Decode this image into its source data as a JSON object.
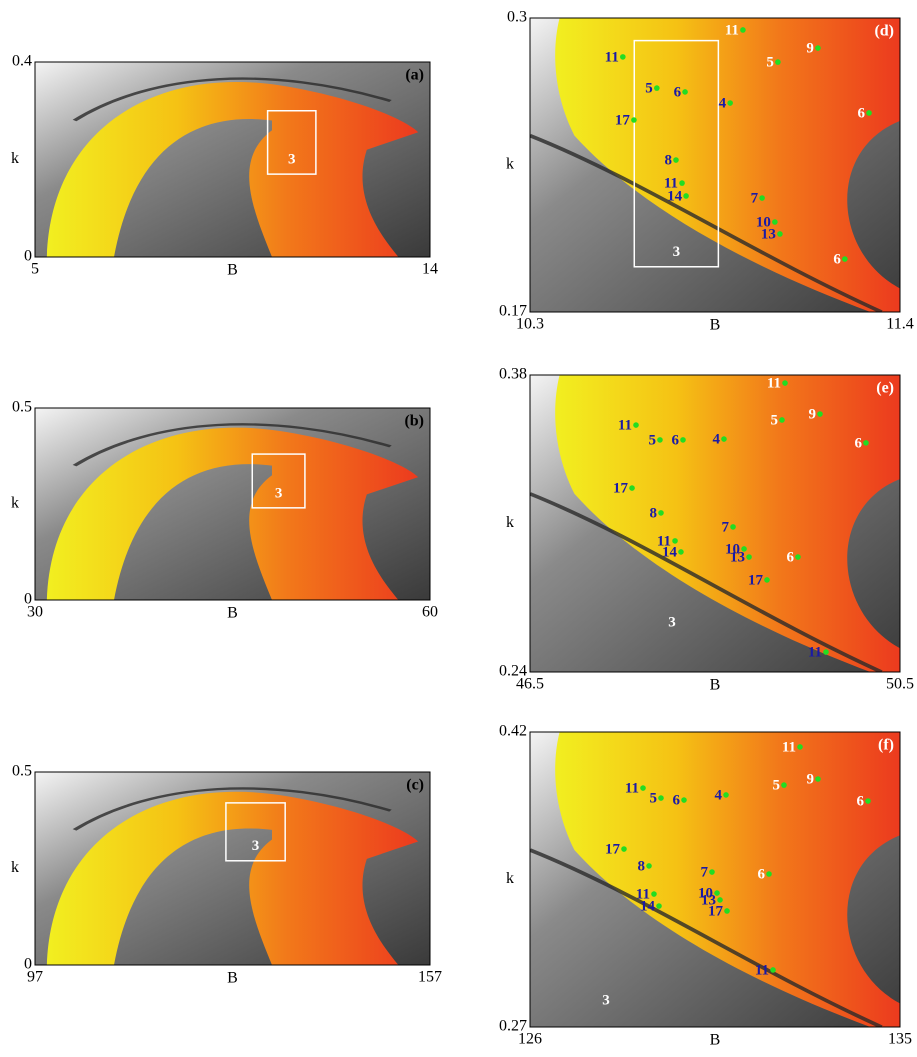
{
  "chart_data": [
    {
      "type": "heatmap",
      "panel_label": "(a)",
      "xlabel": "B",
      "ylabel": "k",
      "xlim": [
        5,
        14
      ],
      "ylim": [
        0,
        0.4
      ],
      "xticks": [
        5,
        14
      ],
      "yticks": [
        0,
        0.4
      ],
      "zoom_box": {
        "x": [
          10.3,
          11.4
        ],
        "y": [
          0.17,
          0.3
        ],
        "label": "3"
      },
      "marker_color": "#22dd22",
      "annotations": []
    },
    {
      "type": "heatmap",
      "panel_label": "(b)",
      "xlabel": "B",
      "ylabel": "k",
      "xlim": [
        30,
        60
      ],
      "ylim": [
        0,
        0.5
      ],
      "xticks": [
        30,
        60
      ],
      "yticks": [
        0,
        0.5
      ],
      "zoom_box": {
        "x": [
          46.5,
          50.5
        ],
        "y": [
          0.24,
          0.38
        ],
        "label": "3"
      },
      "marker_color": "#22dd22",
      "annotations": []
    },
    {
      "type": "heatmap",
      "panel_label": "(c)",
      "xlabel": "B",
      "ylabel": "k",
      "xlim": [
        97,
        157
      ],
      "ylim": [
        0,
        0.5
      ],
      "xticks": [
        97,
        157
      ],
      "yticks": [
        0,
        0.5
      ],
      "zoom_box": {
        "x": [
          126,
          135
        ],
        "y": [
          0.27,
          0.42
        ],
        "label": "3"
      },
      "marker_color": "#22dd22",
      "annotations": []
    },
    {
      "type": "heatmap",
      "panel_label": "(d)",
      "xlabel": "B",
      "ylabel": "k",
      "xlim": [
        10.3,
        11.4
      ],
      "ylim": [
        0.17,
        0.3
      ],
      "xticks": [
        10.3,
        11.4
      ],
      "yticks": [
        0.17,
        0.3
      ],
      "zoom_box": {
        "x": [
          10.61,
          10.86
        ],
        "y": [
          0.19,
          0.29
        ],
        "label": "3"
      },
      "marker_color": "#22dd22",
      "annotations": [
        {
          "text": "11",
          "x": 10.933,
          "y": 0.2947,
          "color": "#ffffff",
          "marker": true
        },
        {
          "text": "11",
          "x": 10.576,
          "y": 0.2828,
          "color": "#1a1aa6",
          "marker": true
        },
        {
          "text": "5",
          "x": 11.037,
          "y": 0.2805,
          "color": "#ffffff",
          "marker": true
        },
        {
          "text": "9",
          "x": 11.156,
          "y": 0.2867,
          "color": "#ffffff",
          "marker": true
        },
        {
          "text": "5",
          "x": 10.677,
          "y": 0.269,
          "color": "#1a1aa6",
          "marker": true
        },
        {
          "text": "6",
          "x": 10.761,
          "y": 0.2673,
          "color": "#1a1aa6",
          "marker": true
        },
        {
          "text": "4",
          "x": 10.895,
          "y": 0.2624,
          "color": "#1a1aa6",
          "marker": true
        },
        {
          "text": "17",
          "x": 10.609,
          "y": 0.2549,
          "color": "#1a1aa6",
          "marker": true
        },
        {
          "text": "6",
          "x": 11.308,
          "y": 0.258,
          "color": "#ffffff",
          "marker": true
        },
        {
          "text": "8",
          "x": 10.734,
          "y": 0.2372,
          "color": "#1a1aa6",
          "marker": true
        },
        {
          "text": "11",
          "x": 10.752,
          "y": 0.227,
          "color": "#1a1aa6",
          "marker": true
        },
        {
          "text": "14",
          "x": 10.764,
          "y": 0.2213,
          "color": "#1a1aa6",
          "marker": true
        },
        {
          "text": "7",
          "x": 10.99,
          "y": 0.2204,
          "color": "#1a1aa6",
          "marker": true
        },
        {
          "text": "10",
          "x": 11.028,
          "y": 0.2098,
          "color": "#1a1aa6",
          "marker": true
        },
        {
          "text": "13",
          "x": 11.043,
          "y": 0.2045,
          "color": "#1a1aa6",
          "marker": true
        },
        {
          "text": "6",
          "x": 11.236,
          "y": 0.1934,
          "color": "#ffffff",
          "marker": true
        }
      ]
    },
    {
      "type": "heatmap",
      "panel_label": "(e)",
      "xlabel": "B",
      "ylabel": "k",
      "xlim": [
        46.5,
        50.5
      ],
      "ylim": [
        0.24,
        0.38
      ],
      "xticks": [
        46.5,
        50.5
      ],
      "yticks": [
        0.24,
        0.38
      ],
      "marker_color": "#22dd22",
      "annotations": [
        {
          "text": "11",
          "x": 49.257,
          "y": 0.3762,
          "color": "#ffffff",
          "marker": true
        },
        {
          "text": "11",
          "x": 47.646,
          "y": 0.3564,
          "color": "#1a1aa6",
          "marker": true
        },
        {
          "text": "5",
          "x": 49.224,
          "y": 0.3588,
          "color": "#ffffff",
          "marker": true
        },
        {
          "text": "9",
          "x": 49.635,
          "y": 0.3616,
          "color": "#ffffff",
          "marker": true
        },
        {
          "text": "5",
          "x": 47.905,
          "y": 0.3494,
          "color": "#1a1aa6",
          "marker": true
        },
        {
          "text": "6",
          "x": 48.154,
          "y": 0.3494,
          "color": "#1a1aa6",
          "marker": true
        },
        {
          "text": "4",
          "x": 48.597,
          "y": 0.3498,
          "color": "#1a1aa6",
          "marker": true
        },
        {
          "text": "6",
          "x": 50.132,
          "y": 0.348,
          "color": "#ffffff",
          "marker": true
        },
        {
          "text": "17",
          "x": 47.603,
          "y": 0.3267,
          "color": "#1a1aa6",
          "marker": true
        },
        {
          "text": "8",
          "x": 47.916,
          "y": 0.315,
          "color": "#1a1aa6",
          "marker": true
        },
        {
          "text": "7",
          "x": 48.695,
          "y": 0.3084,
          "color": "#1a1aa6",
          "marker": true
        },
        {
          "text": "11",
          "x": 48.068,
          "y": 0.3018,
          "color": "#1a1aa6",
          "marker": true
        },
        {
          "text": "14",
          "x": 48.132,
          "y": 0.2966,
          "color": "#1a1aa6",
          "marker": true
        },
        {
          "text": "10",
          "x": 48.814,
          "y": 0.298,
          "color": "#1a1aa6",
          "marker": true
        },
        {
          "text": "13",
          "x": 48.868,
          "y": 0.2942,
          "color": "#1a1aa6",
          "marker": true
        },
        {
          "text": "6",
          "x": 49.397,
          "y": 0.2942,
          "color": "#ffffff",
          "marker": true
        },
        {
          "text": "17",
          "x": 49.062,
          "y": 0.2834,
          "color": "#1a1aa6",
          "marker": true
        },
        {
          "text": "11",
          "x": 49.7,
          "y": 0.2494,
          "color": "#1a1aa6",
          "marker": true
        },
        {
          "text": "3",
          "x": 48.035,
          "y": 0.2636,
          "color": "#ffffff",
          "marker": false
        }
      ]
    },
    {
      "type": "heatmap",
      "panel_label": "(f)",
      "xlabel": "B",
      "ylabel": "k",
      "xlim": [
        126,
        135
      ],
      "ylim": [
        0.27,
        0.42
      ],
      "xticks": [
        126,
        135
      ],
      "yticks": [
        0.27,
        0.42
      ],
      "marker_color": "#22dd22",
      "annotations": [
        {
          "text": "11",
          "x": 132.568,
          "y": 0.4124,
          "color": "#ffffff",
          "marker": true
        },
        {
          "text": "11",
          "x": 128.749,
          "y": 0.3915,
          "color": "#1a1aa6",
          "marker": true
        },
        {
          "text": "5",
          "x": 132.178,
          "y": 0.393,
          "color": "#ffffff",
          "marker": true
        },
        {
          "text": "9",
          "x": 133.005,
          "y": 0.3961,
          "color": "#ffffff",
          "marker": true
        },
        {
          "text": "5",
          "x": 129.186,
          "y": 0.3864,
          "color": "#1a1aa6",
          "marker": true
        },
        {
          "text": "6",
          "x": 129.746,
          "y": 0.3854,
          "color": "#1a1aa6",
          "marker": true
        },
        {
          "text": "4",
          "x": 130.768,
          "y": 0.388,
          "color": "#1a1aa6",
          "marker": true
        },
        {
          "text": "6",
          "x": 134.222,
          "y": 0.3849,
          "color": "#ffffff",
          "marker": true
        },
        {
          "text": "17",
          "x": 128.286,
          "y": 0.3605,
          "color": "#1a1aa6",
          "marker": true
        },
        {
          "text": "8",
          "x": 128.895,
          "y": 0.3519,
          "color": "#1a1aa6",
          "marker": true
        },
        {
          "text": "7",
          "x": 130.427,
          "y": 0.3488,
          "color": "#1a1aa6",
          "marker": true
        },
        {
          "text": "11",
          "x": 129.016,
          "y": 0.3376,
          "color": "#1a1aa6",
          "marker": true
        },
        {
          "text": "14",
          "x": 129.138,
          "y": 0.3315,
          "color": "#1a1aa6",
          "marker": true
        },
        {
          "text": "10",
          "x": 130.549,
          "y": 0.3381,
          "color": "#1a1aa6",
          "marker": true
        },
        {
          "text": "13",
          "x": 130.622,
          "y": 0.3346,
          "color": "#1a1aa6",
          "marker": true
        },
        {
          "text": "17",
          "x": 130.792,
          "y": 0.329,
          "color": "#1a1aa6",
          "marker": true
        },
        {
          "text": "6",
          "x": 131.814,
          "y": 0.3478,
          "color": "#ffffff",
          "marker": true
        },
        {
          "text": "11",
          "x": 131.911,
          "y": 0.299,
          "color": "#1a1aa6",
          "marker": true
        },
        {
          "text": "3",
          "x": 127.849,
          "y": 0.2837,
          "color": "#ffffff",
          "marker": false
        }
      ]
    }
  ]
}
